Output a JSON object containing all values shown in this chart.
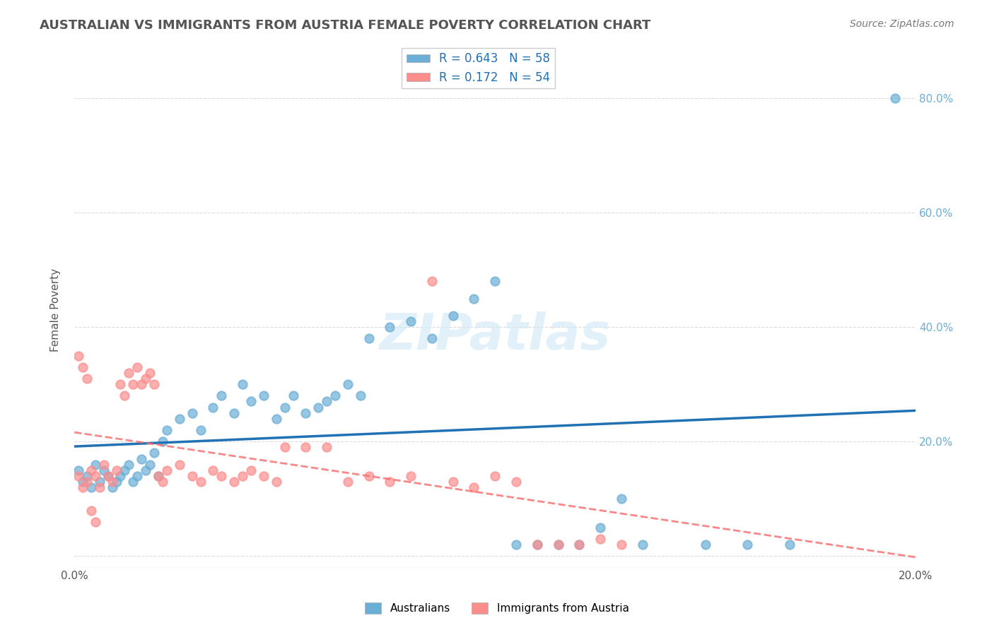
{
  "title": "AUSTRALIAN VS IMMIGRANTS FROM AUSTRIA FEMALE POVERTY CORRELATION CHART",
  "source": "Source: ZipAtlas.com",
  "xlabel": "",
  "ylabel": "Female Poverty",
  "watermark": "ZIPatlas",
  "xlim": [
    0.0,
    0.2
  ],
  "ylim": [
    -0.02,
    0.88
  ],
  "xticks": [
    0.0,
    0.04,
    0.08,
    0.12,
    0.16,
    0.2
  ],
  "yticks": [
    0.0,
    0.2,
    0.4,
    0.6,
    0.8
  ],
  "ytick_labels": [
    "",
    "20.0%",
    "40.0%",
    "60.0%",
    "80.0%"
  ],
  "xtick_labels": [
    "0.0%",
    "",
    "",
    "",
    "",
    "20.0%"
  ],
  "r_australian": 0.643,
  "n_australian": 58,
  "r_austria": 0.172,
  "n_austria": 54,
  "blue_color": "#6baed6",
  "pink_color": "#fc8d8d",
  "blue_line_color": "#2171b5",
  "pink_line_color": "#fb6a6a",
  "title_color": "#555555",
  "axis_label_color": "#6baed6",
  "legend_r_color": "#2171b5",
  "legend_n_color": "#2171b5",
  "australian_scatter_x": [
    0.001,
    0.002,
    0.003,
    0.004,
    0.005,
    0.006,
    0.007,
    0.008,
    0.009,
    0.01,
    0.011,
    0.012,
    0.013,
    0.014,
    0.015,
    0.016,
    0.017,
    0.018,
    0.019,
    0.02,
    0.021,
    0.022,
    0.025,
    0.028,
    0.03,
    0.033,
    0.035,
    0.038,
    0.04,
    0.042,
    0.045,
    0.048,
    0.05,
    0.052,
    0.055,
    0.058,
    0.06,
    0.062,
    0.065,
    0.068,
    0.07,
    0.075,
    0.08,
    0.085,
    0.09,
    0.095,
    0.1,
    0.105,
    0.11,
    0.115,
    0.12,
    0.125,
    0.13,
    0.135,
    0.15,
    0.16,
    0.17,
    0.195
  ],
  "australian_scatter_y": [
    0.15,
    0.13,
    0.14,
    0.12,
    0.16,
    0.13,
    0.15,
    0.14,
    0.12,
    0.13,
    0.14,
    0.15,
    0.16,
    0.13,
    0.14,
    0.17,
    0.15,
    0.16,
    0.18,
    0.14,
    0.2,
    0.22,
    0.24,
    0.25,
    0.22,
    0.26,
    0.28,
    0.25,
    0.3,
    0.27,
    0.28,
    0.24,
    0.26,
    0.28,
    0.25,
    0.26,
    0.27,
    0.28,
    0.3,
    0.28,
    0.38,
    0.4,
    0.41,
    0.38,
    0.42,
    0.45,
    0.48,
    0.02,
    0.02,
    0.02,
    0.02,
    0.05,
    0.1,
    0.02,
    0.02,
    0.02,
    0.02,
    0.8
  ],
  "austria_scatter_x": [
    0.001,
    0.002,
    0.003,
    0.004,
    0.005,
    0.006,
    0.007,
    0.008,
    0.009,
    0.01,
    0.011,
    0.012,
    0.013,
    0.014,
    0.015,
    0.016,
    0.017,
    0.018,
    0.019,
    0.02,
    0.021,
    0.022,
    0.025,
    0.028,
    0.03,
    0.033,
    0.035,
    0.038,
    0.04,
    0.042,
    0.045,
    0.048,
    0.05,
    0.055,
    0.06,
    0.065,
    0.07,
    0.075,
    0.08,
    0.085,
    0.09,
    0.095,
    0.1,
    0.105,
    0.11,
    0.115,
    0.12,
    0.125,
    0.13,
    0.001,
    0.002,
    0.003,
    0.004,
    0.005
  ],
  "austria_scatter_y": [
    0.14,
    0.12,
    0.13,
    0.15,
    0.14,
    0.12,
    0.16,
    0.14,
    0.13,
    0.15,
    0.3,
    0.28,
    0.32,
    0.3,
    0.33,
    0.3,
    0.31,
    0.32,
    0.3,
    0.14,
    0.13,
    0.15,
    0.16,
    0.14,
    0.13,
    0.15,
    0.14,
    0.13,
    0.14,
    0.15,
    0.14,
    0.13,
    0.19,
    0.19,
    0.19,
    0.13,
    0.14,
    0.13,
    0.14,
    0.48,
    0.13,
    0.12,
    0.14,
    0.13,
    0.02,
    0.02,
    0.02,
    0.03,
    0.02,
    0.35,
    0.33,
    0.31,
    0.08,
    0.06
  ]
}
